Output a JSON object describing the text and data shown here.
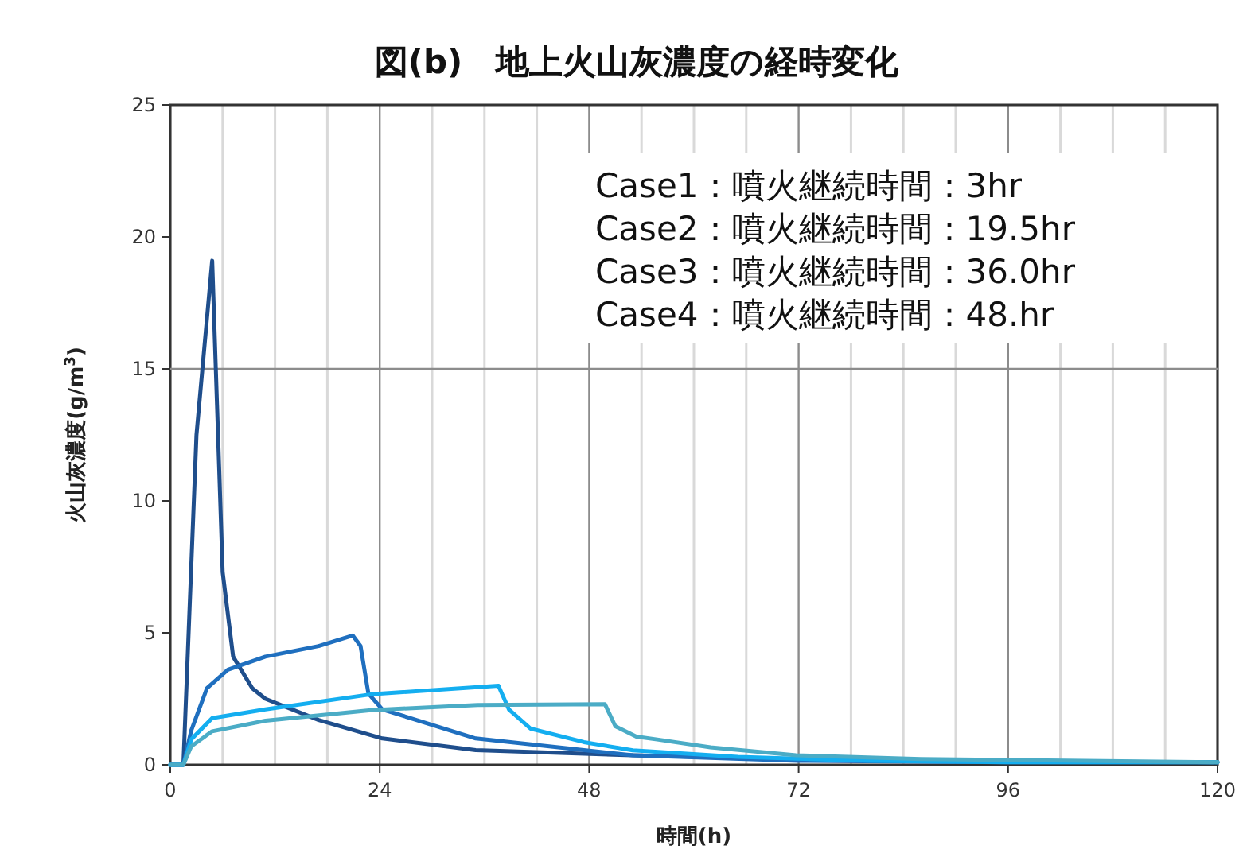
{
  "chart_data": {
    "type": "line",
    "title": "図(b)　地上火山灰濃度の経時変化",
    "xlabel": "時間(h)",
    "ylabel": "火山灰濃度(g/m$^{3}$)",
    "xlim": [
      0,
      120
    ],
    "ylim": [
      0,
      25
    ],
    "xticks": [
      0,
      {
        "value": 6,
        "label": null
      },
      {
        "value": 12,
        "label": null
      },
      {
        "value": 18,
        "label": null
      },
      24,
      {
        "value": 30,
        "label": null
      },
      {
        "value": 36,
        "label": null
      },
      {
        "value": 42,
        "label": null
      },
      48,
      {
        "value": 54,
        "label": null
      },
      {
        "value": 60,
        "label": null
      },
      {
        "value": 66,
        "label": null
      },
      72,
      {
        "value": 78,
        "label": null
      },
      {
        "value": 84,
        "label": null
      },
      {
        "value": 90,
        "label": null
      },
      96,
      {
        "value": 102,
        "label": null
      },
      {
        "value": 108,
        "label": null
      },
      {
        "value": 114,
        "label": null
      },
      120
    ],
    "yticks": [
      0,
      5,
      10,
      15,
      20,
      25
    ],
    "grid": "x",
    "marker": "none",
    "line_style": "solid",
    "ref_lines": [
      {
        "axis": "y",
        "value": 15,
        "color": "#8c8c8c"
      }
    ],
    "annotations": [
      "Case1：噴火継続時間：3hr",
      "Case2：噴火継続時間：19.5hr",
      "Case3：噴火継続時間：36.0hr",
      "Case4：噴火継続時間：48.hr"
    ],
    "series": [
      {
        "color": "#1f4e8c",
        "x": [
          0,
          1.5,
          3.0,
          4.8,
          6.0,
          7.2,
          9.4,
          10.9,
          17,
          24.3,
          35,
          53,
          72,
          96,
          120
        ],
        "values": [
          0,
          0,
          12.5,
          19.1,
          7.3,
          4.1,
          2.9,
          2.5,
          1.7,
          1.0,
          0.56,
          0.36,
          0.2,
          0.12,
          0.1
        ]
      },
      {
        "color": "#1f6fbf",
        "x": [
          0,
          1.5,
          2.4,
          4.2,
          6.6,
          10.9,
          17,
          20.9,
          21.8,
          22.7,
          24.3,
          35,
          53,
          72,
          96,
          120
        ],
        "values": [
          0,
          0,
          1.3,
          2.9,
          3.6,
          4.1,
          4.5,
          4.9,
          4.5,
          2.7,
          2.1,
          1.0,
          0.36,
          0.15,
          0.1,
          0.1
        ]
      },
      {
        "color": "#14aef0",
        "x": [
          0,
          1.5,
          2.4,
          4.8,
          10.9,
          23,
          37.6,
          38.8,
          41.3,
          47.4,
          53,
          65,
          80,
          96,
          120
        ],
        "values": [
          0,
          0,
          0.96,
          1.77,
          2.1,
          2.67,
          3.0,
          2.1,
          1.37,
          0.86,
          0.55,
          0.3,
          0.15,
          0.1,
          0.1
        ]
      },
      {
        "color": "#4bacc6",
        "x": [
          0,
          1.5,
          2.4,
          4.8,
          10.9,
          23,
          35.2,
          49.8,
          51,
          53.4,
          55.8,
          61.9,
          71.7,
          86,
          120
        ],
        "values": [
          0,
          0,
          0.7,
          1.27,
          1.67,
          2.07,
          2.27,
          2.3,
          1.46,
          1.07,
          0.96,
          0.66,
          0.36,
          0.22,
          0.1
        ]
      }
    ]
  }
}
